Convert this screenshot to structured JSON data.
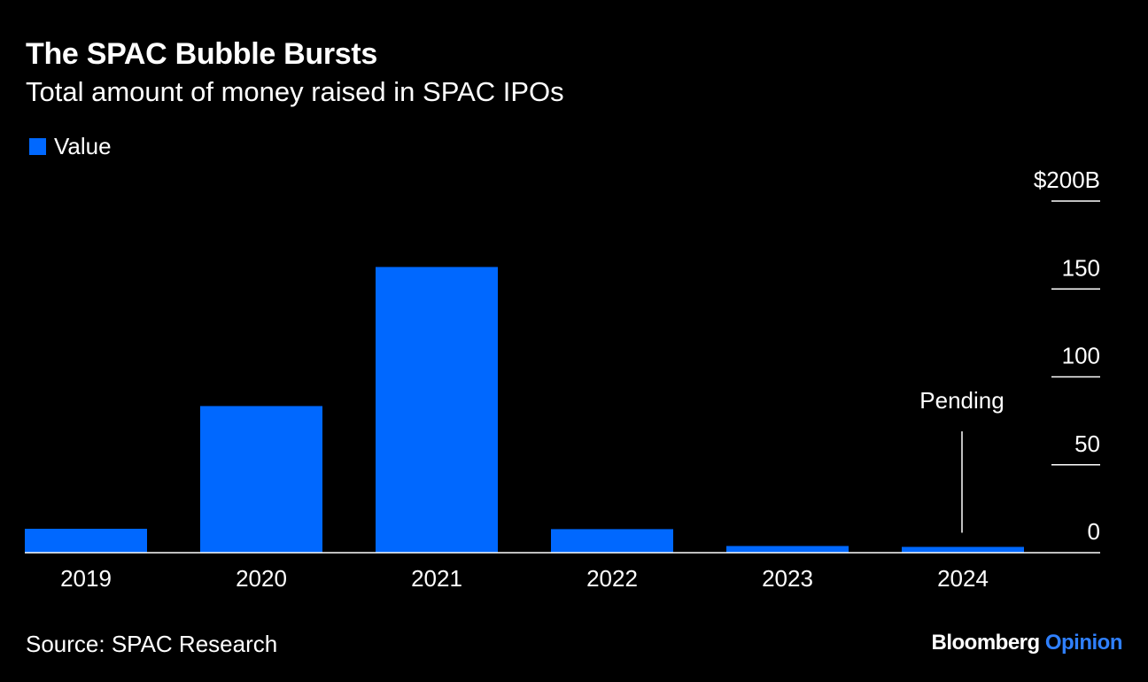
{
  "title": "The SPAC Bubble Bursts",
  "subtitle": "Total amount of money raised in SPAC IPOs",
  "source": "Source: SPAC Research",
  "brand": {
    "name": "Bloomberg",
    "suffix": "Opinion"
  },
  "colors": {
    "background": "#000000",
    "bar": "#0068ff",
    "text": "#ffffff",
    "accent": "#2f80ff"
  },
  "chart_data": {
    "type": "bar",
    "title": "The SPAC Bubble Bursts",
    "subtitle": "Total amount of money raised in SPAC IPOs",
    "categories": [
      "2019",
      "2020",
      "2021",
      "2022",
      "2023",
      "2024"
    ],
    "series": [
      {
        "name": "Value",
        "values": [
          13.6,
          83.4,
          162.5,
          13.4,
          3.8,
          3.3
        ]
      }
    ],
    "ylim": [
      0,
      200
    ],
    "yticks": [
      {
        "value": 0,
        "label": "0"
      },
      {
        "value": 50,
        "label": "50"
      },
      {
        "value": 100,
        "label": "100"
      },
      {
        "value": 150,
        "label": "150"
      },
      {
        "value": 200,
        "label": "$200B"
      }
    ],
    "annotations": [
      {
        "category": "2024",
        "text": "Pending"
      }
    ],
    "legend": "top-left",
    "axis_side": "right",
    "grid": false
  }
}
